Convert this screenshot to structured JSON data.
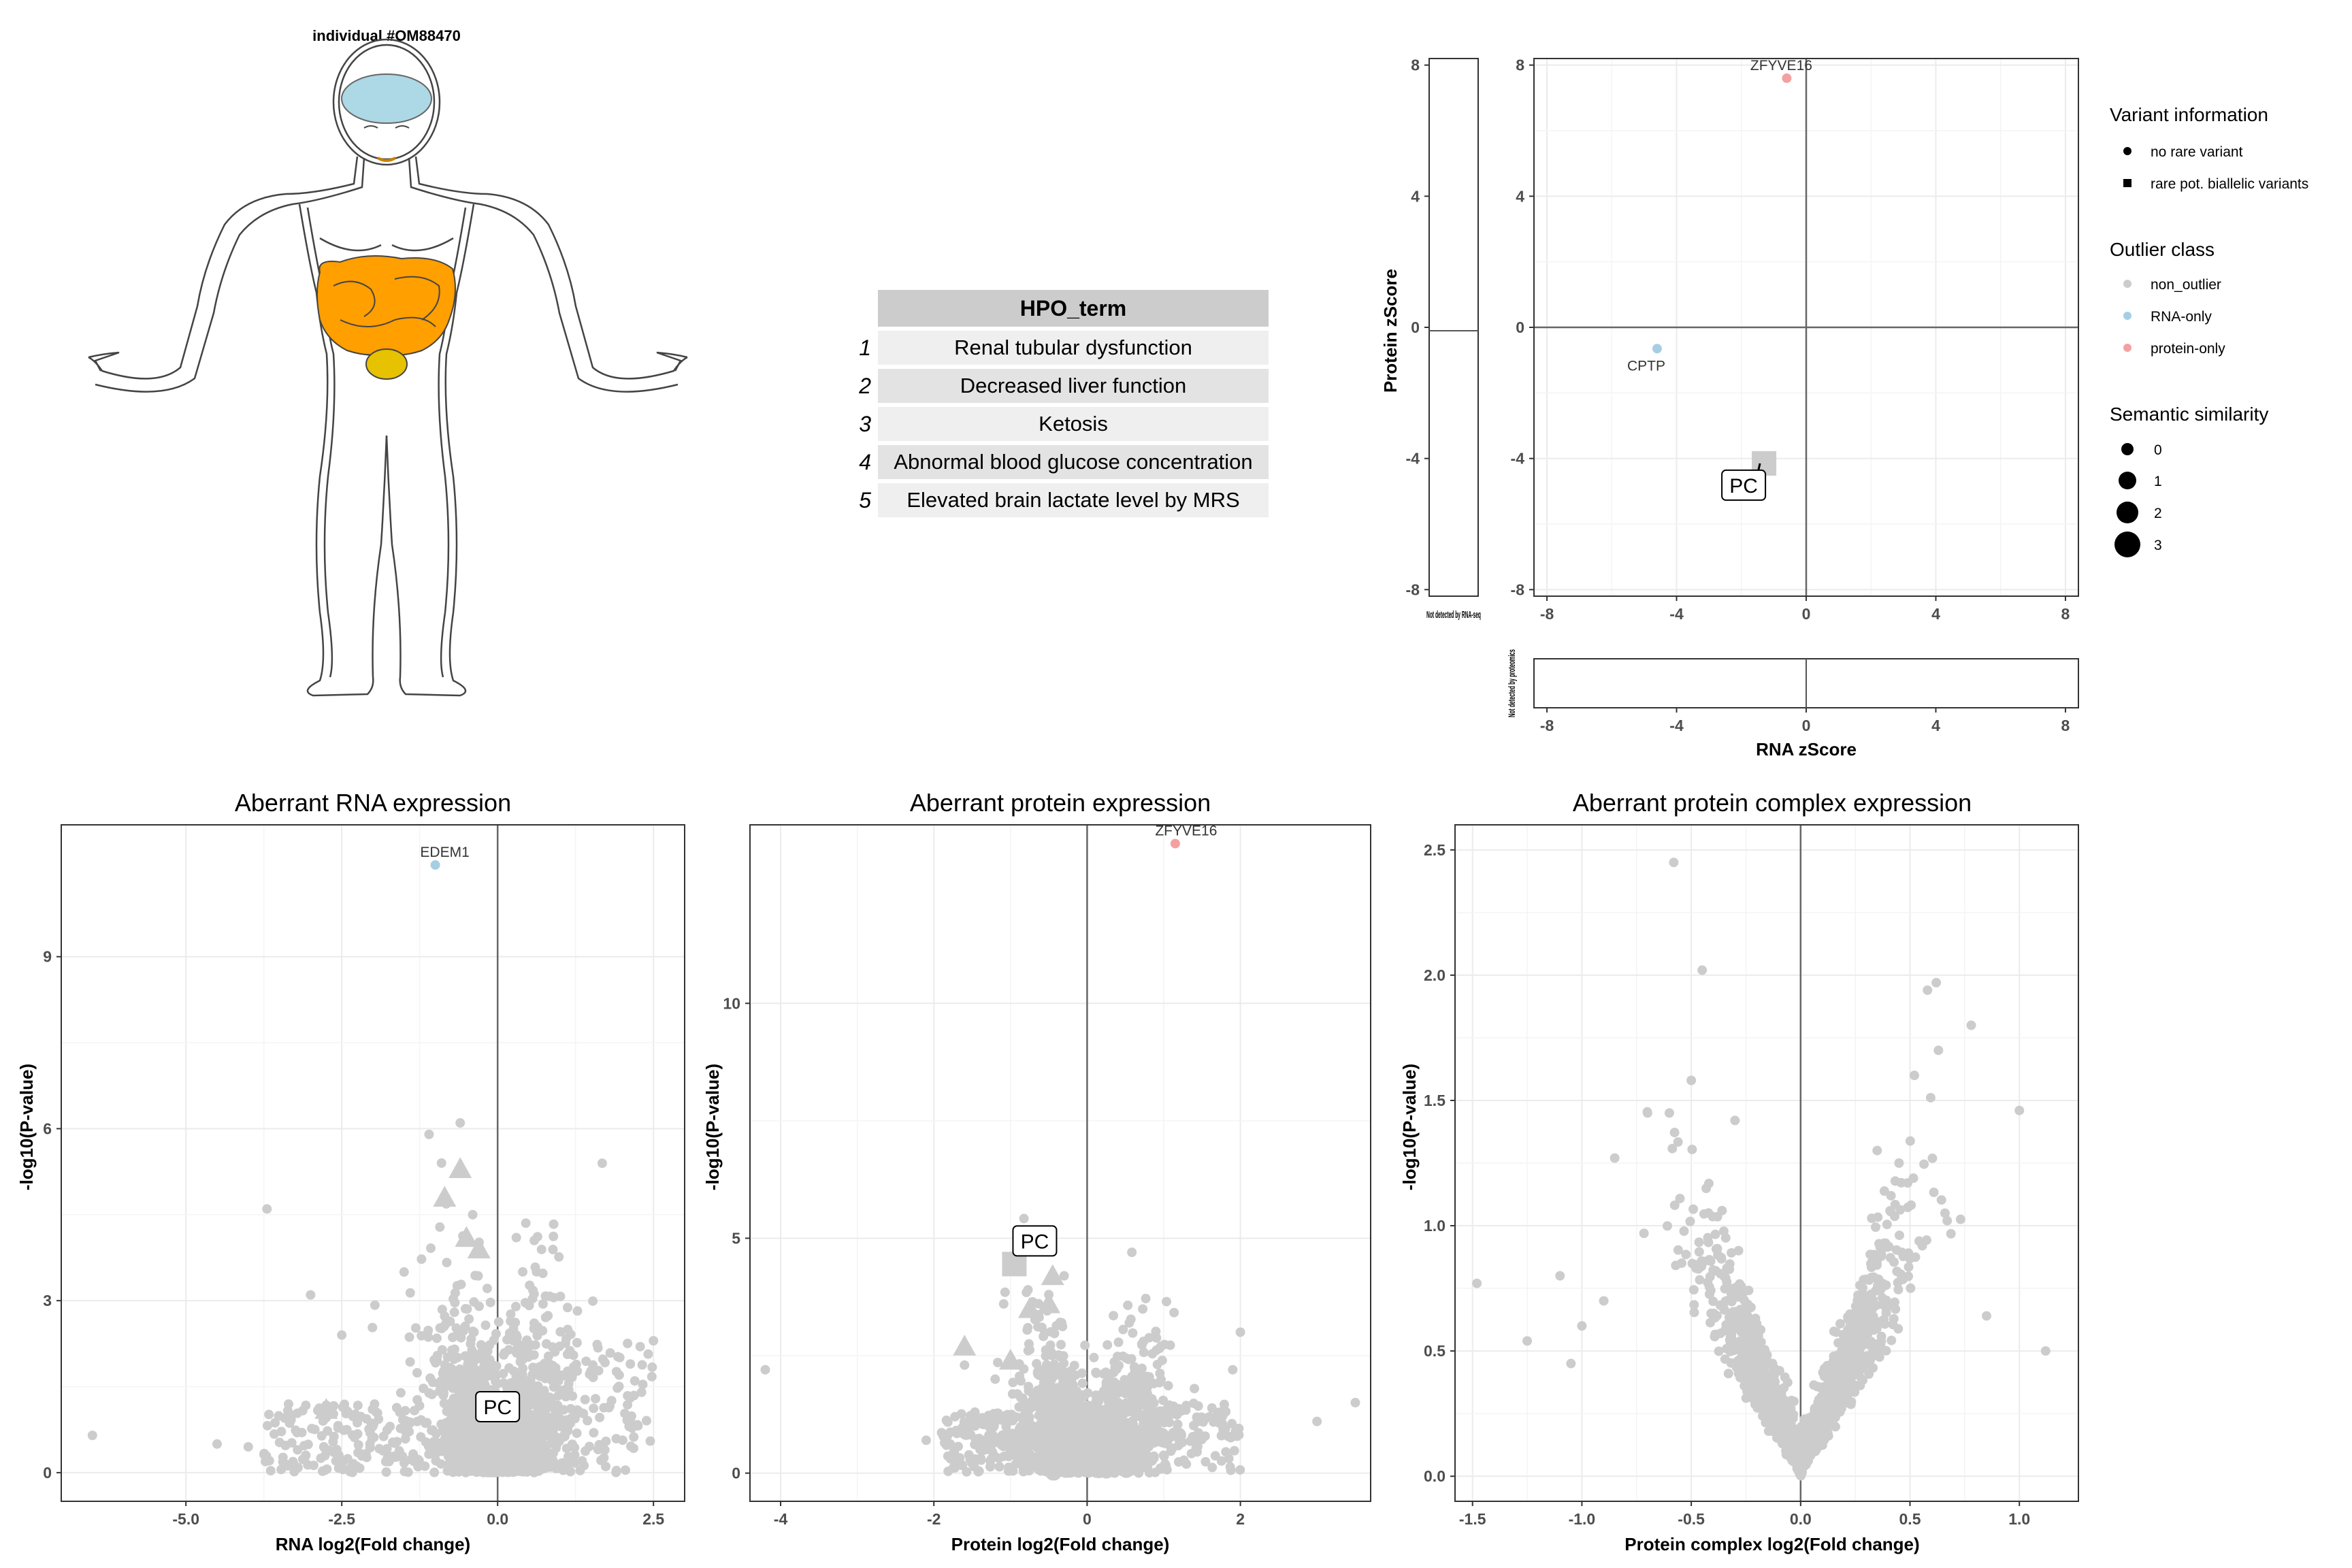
{
  "individual_title": "individual #OM88470",
  "hpo_table": {
    "header": "HPO_term",
    "rows": [
      {
        "index": "1",
        "term": "Renal tubular dysfunction"
      },
      {
        "index": "2",
        "term": "Decreased liver function"
      },
      {
        "index": "3",
        "term": "Ketosis"
      },
      {
        "index": "4",
        "term": "Abnormal blood glucose concentration"
      },
      {
        "index": "5",
        "term": "Elevated brain lactate level by MRS"
      }
    ]
  },
  "colors": {
    "non_outlier": "#cccccc",
    "rna_only": "#a6cee3",
    "protein_only": "#f4a0a0",
    "organ_fill": "#ff9f00",
    "brain_fill": "#add8e6"
  },
  "chart_data": [
    {
      "id": "zscore",
      "type": "scatter",
      "xlabel": "RNA zScore",
      "ylabel": "Protein zScore",
      "xlim": [
        -8.4,
        8.4
      ],
      "ylim": [
        -8.2,
        8.2
      ],
      "xticks": [
        "-8",
        "-4",
        "0",
        "4",
        "8"
      ],
      "yticks": [
        "8",
        "4",
        "0",
        "-4",
        "-8"
      ],
      "grid": true,
      "side_panel_label": "Not detected by RNA-seq",
      "bottom_panel_label": "Not detected by proteomics",
      "points": [
        {
          "label": "ZFYVE16",
          "x": -0.6,
          "y": 7.6,
          "class": "protein_only"
        },
        {
          "label": "CPTP",
          "x": -4.6,
          "y": -0.65,
          "class": "rna_only"
        },
        {
          "label": "PC",
          "x": -1.3,
          "y": -4.15,
          "class": "non_outlier",
          "shape": "square",
          "boxed": true
        }
      ]
    },
    {
      "id": "rna",
      "type": "scatter",
      "title": "Aberrant RNA expression",
      "xlabel": "RNA log2(Fold change)",
      "ylabel": "-log10(P-value)",
      "xlim": [
        -7,
        3
      ],
      "ylim": [
        -0.5,
        11.3
      ],
      "xticks": [
        "-5.0",
        "-2.5",
        "0.0",
        "2.5"
      ],
      "yticks": [
        "0",
        "3",
        "6",
        "9"
      ],
      "grid": true,
      "labeled": [
        {
          "label": "EDEM1",
          "x": -1.0,
          "y": 10.6,
          "class": "rna_only"
        },
        {
          "label": "PC",
          "x": 0.0,
          "y": 1.15,
          "class": "non_outlier",
          "boxed": true
        }
      ],
      "triangles": [
        [
          -0.6,
          5.3
        ],
        [
          -0.85,
          4.8
        ],
        [
          -0.5,
          4.1
        ],
        [
          -0.3,
          3.9
        ],
        [
          -2.75,
          1.1
        ]
      ]
    },
    {
      "id": "protein",
      "type": "scatter",
      "title": "Aberrant protein expression",
      "xlabel": "Protein log2(Fold change)",
      "ylabel": "-log10(P-value)",
      "xlim": [
        -4.4,
        3.7
      ],
      "ylim": [
        -0.6,
        13.8
      ],
      "xticks": [
        "-4",
        "-2",
        "0",
        "2"
      ],
      "yticks": [
        "0",
        "5",
        "10"
      ],
      "grid": true,
      "labeled": [
        {
          "label": "ZFYVE16",
          "x": 1.15,
          "y": 13.4,
          "class": "protein_only"
        },
        {
          "label": "PC",
          "x": -0.95,
          "y": 4.45,
          "class": "non_outlier",
          "shape": "square",
          "boxed": true
        }
      ],
      "triangles": [
        [
          -0.5,
          3.6
        ],
        [
          -0.75,
          3.5
        ],
        [
          -0.45,
          4.2
        ],
        [
          -1.6,
          2.7
        ],
        [
          -1.0,
          2.4
        ]
      ]
    },
    {
      "id": "complex",
      "type": "scatter",
      "title": "Aberrant protein complex expression",
      "xlabel": "Protein complex log2(Fold change)",
      "ylabel": "-log10(P-value)",
      "xlim": [
        -1.58,
        1.27
      ],
      "ylim": [
        -0.1,
        2.6
      ],
      "xticks": [
        "-1.5",
        "-1.0",
        "-0.5",
        "0.0",
        "0.5",
        "1.0"
      ],
      "yticks": [
        "0.0",
        "0.5",
        "1.0",
        "1.5",
        "2.0",
        "2.5"
      ],
      "grid": true
    }
  ],
  "legend": {
    "variant_title": "Variant information",
    "variant_items": [
      {
        "label": "no rare variant",
        "shape": "circle"
      },
      {
        "label": "rare pot. biallelic variants",
        "shape": "square"
      }
    ],
    "outlier_title": "Outlier class",
    "outlier_items": [
      {
        "label": "non_outlier",
        "color": "#cccccc"
      },
      {
        "label": "RNA-only",
        "color": "#a6cee3"
      },
      {
        "label": "protein-only",
        "color": "#f4a0a0"
      }
    ],
    "similarity_title": "Semantic similarity",
    "similarity_items": [
      {
        "label": "0",
        "size": 0
      },
      {
        "label": "1",
        "size": 1
      },
      {
        "label": "2",
        "size": 2
      },
      {
        "label": "3",
        "size": 3
      }
    ]
  }
}
